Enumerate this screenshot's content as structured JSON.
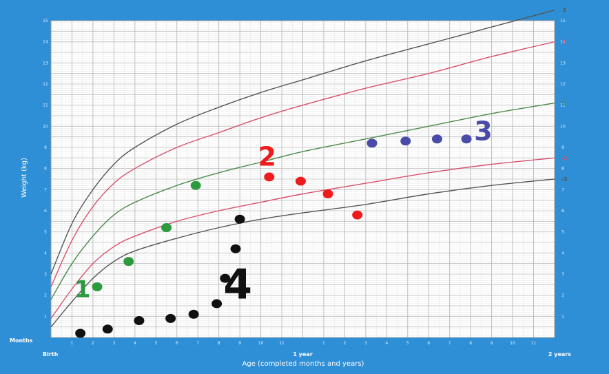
{
  "chart_data": {
    "type": "line",
    "title": "",
    "xlabel": "Age (completed months and years)",
    "ylabel": "Weight (kg)",
    "xlim": [
      0,
      24
    ],
    "ylim": [
      0,
      15
    ],
    "x_ticks_left": "Months",
    "x_tick_labels": [
      {
        "x": 0,
        "label": "Birth"
      },
      {
        "x": 12,
        "label": "1 year"
      },
      {
        "x": 24,
        "label": "2 years"
      }
    ],
    "month_ticks": [
      "1",
      "2",
      "3",
      "4",
      "5",
      "6",
      "7",
      "8",
      "9",
      "10",
      "11",
      "1",
      "2",
      "3",
      "4",
      "5",
      "6",
      "7",
      "8",
      "9",
      "10",
      "11"
    ],
    "y_ticks": [
      "1",
      "2",
      "3",
      "4",
      "5",
      "6",
      "7",
      "8",
      "9",
      "10",
      "11",
      "12",
      "13",
      "14",
      "15"
    ],
    "curves": [
      {
        "name": "3",
        "color": "#555555",
        "x": [
          0,
          1,
          2,
          3,
          4,
          6,
          8,
          10,
          12,
          15,
          18,
          21,
          24
        ],
        "y": [
          3.0,
          5.4,
          7.0,
          8.2,
          9.0,
          10.1,
          10.9,
          11.6,
          12.2,
          13.1,
          13.9,
          14.7,
          15.5
        ]
      },
      {
        "name": "2",
        "color": "#d9506a",
        "x": [
          0,
          1,
          2,
          3,
          4,
          6,
          8,
          10,
          12,
          15,
          18,
          21,
          24
        ],
        "y": [
          2.4,
          4.6,
          6.2,
          7.3,
          8.0,
          9.0,
          9.7,
          10.4,
          11.0,
          11.8,
          12.5,
          13.3,
          14.0
        ]
      },
      {
        "name": "0",
        "color": "#4a8a4a",
        "x": [
          0,
          1,
          2,
          3,
          4,
          6,
          8,
          10,
          12,
          15,
          18,
          21,
          24
        ],
        "y": [
          1.8,
          3.5,
          4.8,
          5.8,
          6.4,
          7.2,
          7.8,
          8.3,
          8.8,
          9.4,
          10.0,
          10.6,
          11.1
        ]
      },
      {
        "name": "-2",
        "color": "#d9506a",
        "x": [
          0,
          1,
          2,
          3,
          4,
          6,
          8,
          10,
          12,
          15,
          18,
          21,
          24
        ],
        "y": [
          0.9,
          2.3,
          3.5,
          4.3,
          4.8,
          5.5,
          6.0,
          6.4,
          6.8,
          7.3,
          7.8,
          8.2,
          8.5
        ]
      },
      {
        "name": "-3",
        "color": "#555555",
        "x": [
          0,
          1,
          2,
          3,
          4,
          6,
          8,
          10,
          12,
          15,
          18,
          21,
          24
        ],
        "y": [
          0.5,
          1.7,
          2.8,
          3.6,
          4.1,
          4.7,
          5.2,
          5.6,
          5.9,
          6.3,
          6.8,
          7.2,
          7.5
        ]
      }
    ],
    "series": [
      {
        "name": "1",
        "color": "#2e9a3e",
        "x": [
          2.2,
          3.7,
          5.5,
          6.9
        ],
        "y": [
          2.4,
          3.6,
          5.2,
          7.2
        ]
      },
      {
        "name": "2",
        "color": "#ee1c1c",
        "x": [
          10.4,
          11.9,
          13.2,
          14.6
        ],
        "y": [
          7.6,
          7.4,
          6.8,
          5.8
        ]
      },
      {
        "name": "3",
        "color": "#4a4aa8",
        "x": [
          15.3,
          16.9,
          18.4,
          19.8
        ],
        "y": [
          9.2,
          9.3,
          9.4,
          9.4
        ]
      },
      {
        "name": "4",
        "color": "#111111",
        "x": [
          1.4,
          2.7,
          4.2,
          5.7,
          6.8,
          7.9,
          8.3,
          8.8,
          9.0
        ],
        "y": [
          0.2,
          0.4,
          0.8,
          0.9,
          1.1,
          1.6,
          2.8,
          4.2,
          5.6
        ]
      }
    ],
    "grid": true,
    "legend": "none"
  },
  "colors": {
    "frame": "#2f8fd6",
    "plot_bg": "#ffffff",
    "grid_major": "#b8b8b8",
    "grid_minor": "#e2e2e2"
  }
}
